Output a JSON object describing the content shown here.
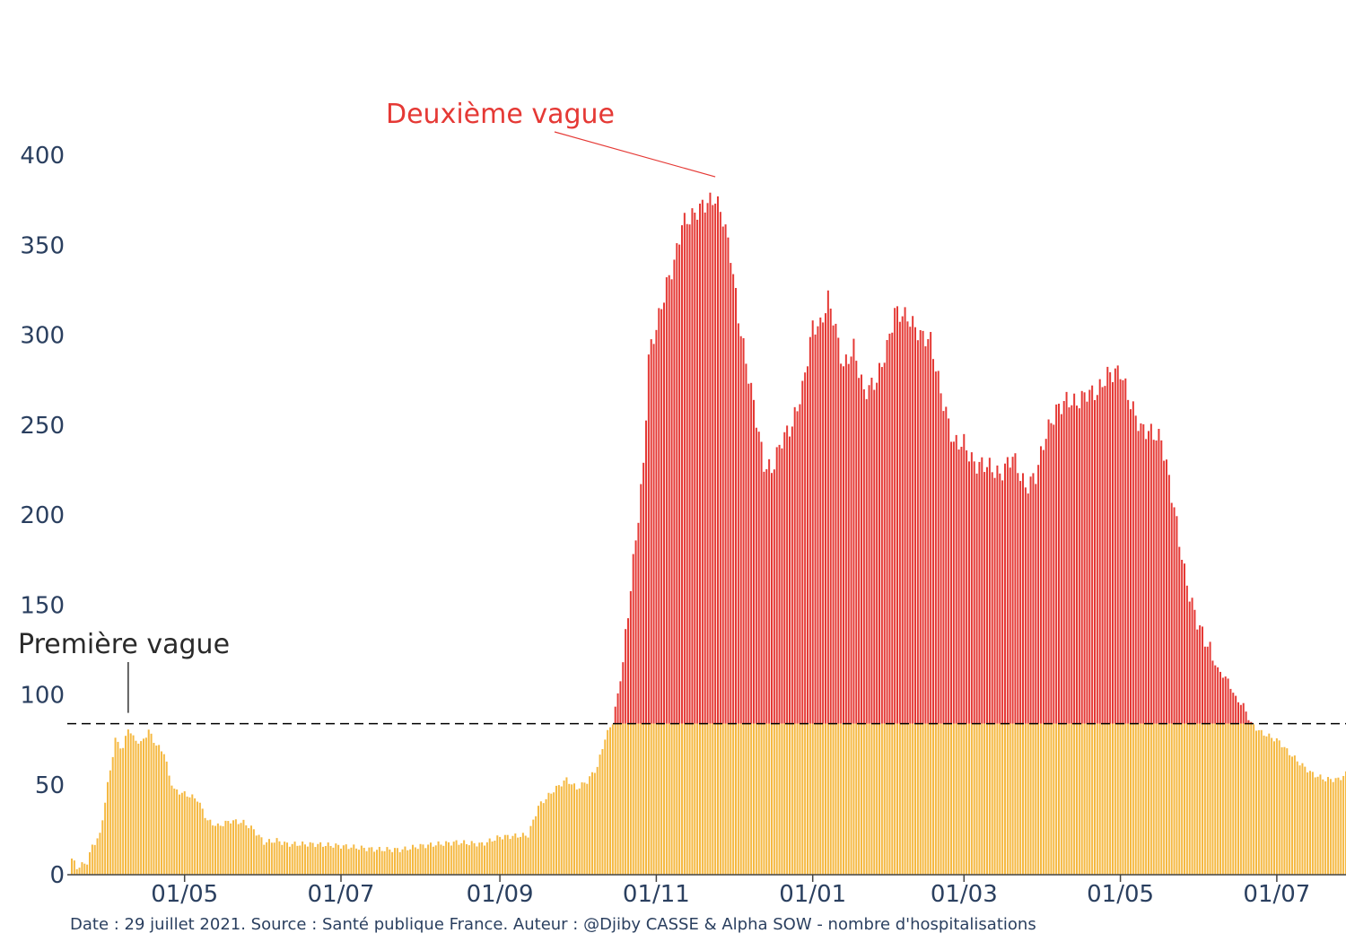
{
  "chart_data": {
    "type": "bar",
    "title": "",
    "xlabel": "",
    "ylabel": "",
    "x_start": "2020-03-18",
    "x_end": "2021-07-28",
    "ylim": [
      0,
      430
    ],
    "y_ticks": [
      0,
      50,
      100,
      150,
      200,
      250,
      300,
      350,
      400
    ],
    "x_ticks": [
      {
        "date": "2020-05-01",
        "label": "01/05"
      },
      {
        "date": "2020-07-01",
        "label": "01/07"
      },
      {
        "date": "2020-09-01",
        "label": "01/09"
      },
      {
        "date": "2020-11-01",
        "label": "01/11"
      },
      {
        "date": "2021-01-01",
        "label": "01/01"
      },
      {
        "date": "2021-03-01",
        "label": "01/03"
      },
      {
        "date": "2021-05-01",
        "label": "01/05"
      },
      {
        "date": "2021-07-01",
        "label": "01/07"
      }
    ],
    "threshold": 84,
    "base_color": "#f5b942",
    "excess_color": "#e53935",
    "values_anchor": [
      [
        "2020-03-18",
        9
      ],
      [
        "2020-03-20",
        4
      ],
      [
        "2020-03-24",
        7
      ],
      [
        "2020-03-26",
        16
      ],
      [
        "2020-03-29",
        22
      ],
      [
        "2020-04-01",
        50
      ],
      [
        "2020-04-04",
        75
      ],
      [
        "2020-04-07",
        70
      ],
      [
        "2020-04-09",
        82
      ],
      [
        "2020-04-11",
        76
      ],
      [
        "2020-04-14",
        73
      ],
      [
        "2020-04-17",
        80
      ],
      [
        "2020-04-20",
        72
      ],
      [
        "2020-04-23",
        68
      ],
      [
        "2020-04-25",
        55
      ],
      [
        "2020-04-27",
        47
      ],
      [
        "2020-05-01",
        45
      ],
      [
        "2020-05-06",
        42
      ],
      [
        "2020-05-10",
        30
      ],
      [
        "2020-05-14",
        27
      ],
      [
        "2020-05-19",
        30
      ],
      [
        "2020-05-24",
        29
      ],
      [
        "2020-05-28",
        25
      ],
      [
        "2020-06-01",
        18
      ],
      [
        "2020-06-06",
        19
      ],
      [
        "2020-06-10",
        17
      ],
      [
        "2020-06-20",
        17
      ],
      [
        "2020-07-01",
        16
      ],
      [
        "2020-07-15",
        14
      ],
      [
        "2020-07-25",
        14
      ],
      [
        "2020-08-01",
        16
      ],
      [
        "2020-08-15",
        18
      ],
      [
        "2020-08-25",
        17
      ],
      [
        "2020-09-01",
        21
      ],
      [
        "2020-09-12",
        22
      ],
      [
        "2020-09-16",
        38
      ],
      [
        "2020-09-22",
        47
      ],
      [
        "2020-09-27",
        53
      ],
      [
        "2020-10-01",
        48
      ],
      [
        "2020-10-05",
        52
      ],
      [
        "2020-10-09",
        60
      ],
      [
        "2020-10-12",
        76
      ],
      [
        "2020-10-15",
        85
      ],
      [
        "2020-10-17",
        100
      ],
      [
        "2020-10-19",
        118
      ],
      [
        "2020-10-22",
        160
      ],
      [
        "2020-10-25",
        200
      ],
      [
        "2020-10-27",
        227
      ],
      [
        "2020-10-29",
        288
      ],
      [
        "2020-11-02",
        310
      ],
      [
        "2020-11-05",
        328
      ],
      [
        "2020-11-08",
        340
      ],
      [
        "2020-11-11",
        362
      ],
      [
        "2020-11-15",
        366
      ],
      [
        "2020-11-19",
        372
      ],
      [
        "2020-11-24",
        376
      ],
      [
        "2020-11-27",
        365
      ],
      [
        "2020-11-30",
        345
      ],
      [
        "2020-12-03",
        310
      ],
      [
        "2020-12-06",
        285
      ],
      [
        "2020-12-09",
        262
      ],
      [
        "2020-12-13",
        228
      ],
      [
        "2020-12-16",
        225
      ],
      [
        "2020-12-20",
        242
      ],
      [
        "2020-12-24",
        250
      ],
      [
        "2020-12-28",
        270
      ],
      [
        "2021-01-01",
        305
      ],
      [
        "2021-01-04",
        305
      ],
      [
        "2021-01-07",
        320
      ],
      [
        "2021-01-09",
        310
      ],
      [
        "2021-01-13",
        282
      ],
      [
        "2021-01-17",
        293
      ],
      [
        "2021-01-21",
        268
      ],
      [
        "2021-01-26",
        275
      ],
      [
        "2021-01-30",
        293
      ],
      [
        "2021-02-02",
        313
      ],
      [
        "2021-02-07",
        310
      ],
      [
        "2021-02-12",
        300
      ],
      [
        "2021-02-16",
        297
      ],
      [
        "2021-02-20",
        268
      ],
      [
        "2021-02-25",
        240
      ],
      [
        "2021-03-01",
        240
      ],
      [
        "2021-03-05",
        228
      ],
      [
        "2021-03-10",
        228
      ],
      [
        "2021-03-15",
        222
      ],
      [
        "2021-03-20",
        233
      ],
      [
        "2021-03-25",
        215
      ],
      [
        "2021-03-29",
        222
      ],
      [
        "2021-04-02",
        245
      ],
      [
        "2021-04-06",
        258
      ],
      [
        "2021-04-10",
        264
      ],
      [
        "2021-04-14",
        262
      ],
      [
        "2021-04-18",
        268
      ],
      [
        "2021-04-22",
        268
      ],
      [
        "2021-04-26",
        278
      ],
      [
        "2021-05-01",
        280
      ],
      [
        "2021-05-05",
        262
      ],
      [
        "2021-05-09",
        248
      ],
      [
        "2021-05-13",
        246
      ],
      [
        "2021-05-17",
        242
      ],
      [
        "2021-05-20",
        220
      ],
      [
        "2021-05-23",
        195
      ],
      [
        "2021-05-26",
        168
      ],
      [
        "2021-05-29",
        150
      ],
      [
        "2021-06-01",
        137
      ],
      [
        "2021-06-04",
        128
      ],
      [
        "2021-06-08",
        114
      ],
      [
        "2021-06-12",
        108
      ],
      [
        "2021-06-15",
        98
      ],
      [
        "2021-06-18",
        94
      ],
      [
        "2021-06-21",
        84
      ],
      [
        "2021-06-25",
        79
      ],
      [
        "2021-06-28",
        77
      ],
      [
        "2021-07-02",
        74
      ],
      [
        "2021-07-05",
        69
      ],
      [
        "2021-07-10",
        62
      ],
      [
        "2021-07-15",
        56
      ],
      [
        "2021-07-20",
        53
      ],
      [
        "2021-07-25",
        53
      ],
      [
        "2021-07-28",
        56
      ]
    ]
  },
  "annotations": {
    "first_wave": {
      "label": "Première vague",
      "date": "2020-04-09",
      "value": 84
    },
    "second_wave": {
      "label": "Deuxième vague",
      "date": "2020-11-24",
      "value": 388
    }
  },
  "footer": "Date : 29 juillet 2021. Source : Santé publique France. Auteur : @Djiby CASSE & Alpha SOW - nombre d'hospitalisations"
}
